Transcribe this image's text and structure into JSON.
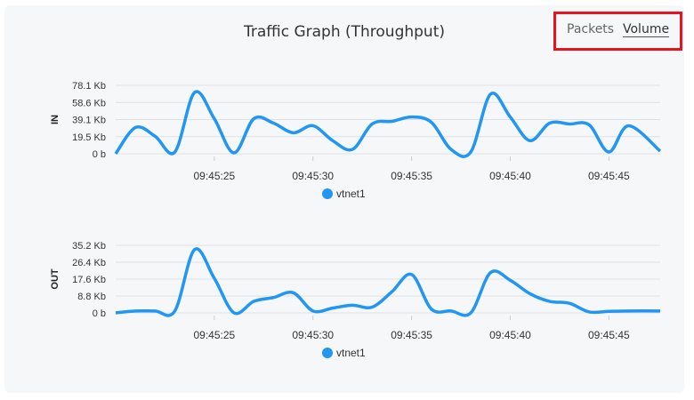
{
  "title": "Traffic Graph (Throughput)",
  "toggle": {
    "packets": "Packets",
    "volume": "Volume",
    "active": "Volume"
  },
  "chart_data": [
    {
      "type": "line",
      "ylabel": "IN",
      "yticks": [
        "0 b",
        "19.5 Kb",
        "39.1 Kb",
        "58.6 Kb",
        "78.1 Kb"
      ],
      "ylim": [
        0,
        78.1
      ],
      "xticks": [
        "09:45:25",
        "09:45:30",
        "09:45:35",
        "09:45:40",
        "09:45:45"
      ],
      "xtick_seconds": [
        25,
        30,
        35,
        40,
        45
      ],
      "xlim": [
        20,
        47.6
      ],
      "legend": "vtnet1",
      "color": "#2196f3",
      "x": [
        20,
        21,
        22,
        23,
        24,
        25,
        26,
        27,
        28,
        29,
        30,
        31,
        32,
        33,
        34,
        35,
        36,
        37,
        38,
        39,
        40,
        41,
        42,
        43,
        44,
        45,
        46,
        47.6
      ],
      "values": [
        0,
        30,
        20,
        2,
        70,
        40,
        1,
        40,
        35,
        24,
        32,
        15,
        5,
        34,
        37,
        42,
        36,
        5,
        2,
        68,
        42,
        15,
        35,
        34,
        33,
        2,
        32,
        3
      ]
    },
    {
      "type": "line",
      "ylabel": "OUT",
      "yticks": [
        "0 b",
        "8.8 Kb",
        "17.6 Kb",
        "26.4 Kb",
        "35.2 Kb"
      ],
      "ylim": [
        0,
        35.2
      ],
      "xticks": [
        "09:45:25",
        "09:45:30",
        "09:45:35",
        "09:45:40",
        "09:45:45"
      ],
      "xtick_seconds": [
        25,
        30,
        35,
        40,
        45
      ],
      "xlim": [
        20,
        47.6
      ],
      "legend": "vtnet1",
      "color": "#2196f3",
      "x": [
        20,
        21,
        22,
        23,
        24,
        25,
        26,
        27,
        28,
        29,
        30,
        31,
        32,
        33,
        34,
        35,
        36,
        37,
        38,
        39,
        40,
        41,
        42,
        43,
        44,
        45,
        46,
        47.6
      ],
      "values": [
        0,
        1,
        1,
        1,
        33,
        18,
        0,
        6,
        8,
        10.5,
        1,
        2.5,
        4,
        3,
        11,
        20,
        2,
        1,
        0,
        21,
        17,
        10,
        6,
        5,
        0.5,
        0.8,
        1,
        1
      ]
    }
  ]
}
